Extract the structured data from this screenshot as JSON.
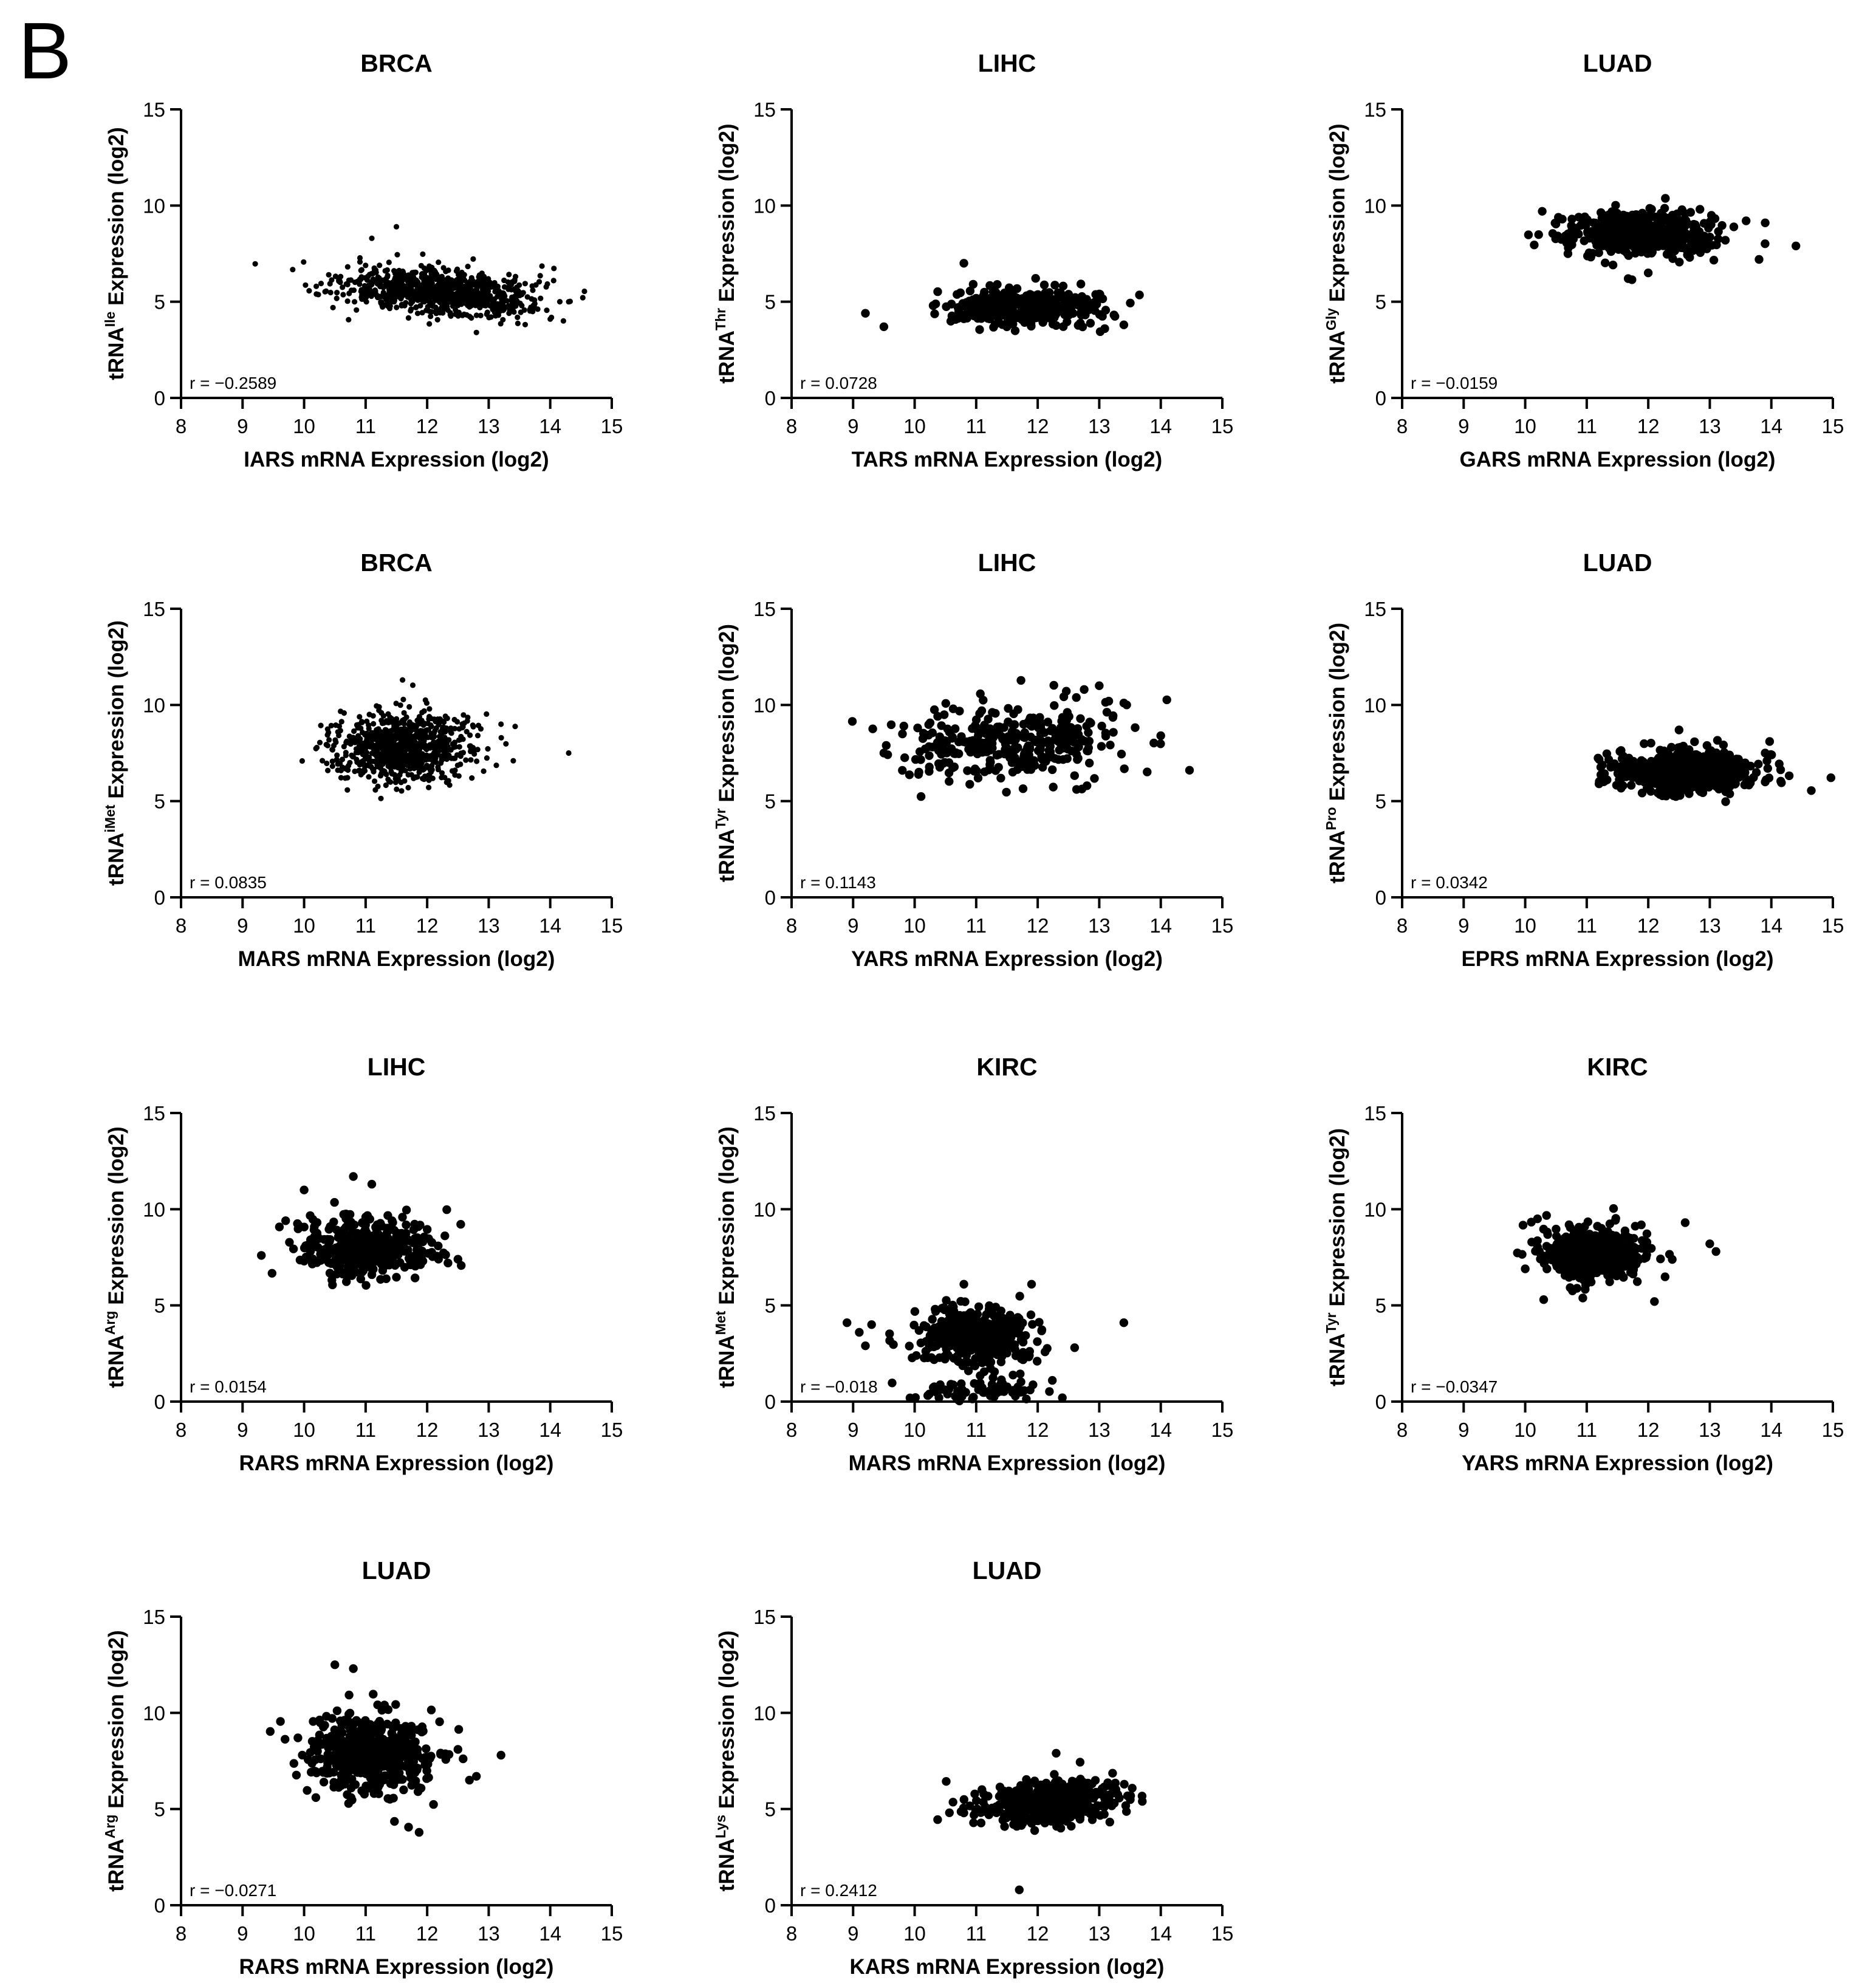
{
  "panel_label": "B",
  "colors": {
    "background": "#ffffff",
    "ink": "#000000"
  },
  "chart_data": [
    {
      "type": "scatter",
      "title": "BRCA",
      "xlabel": "IARS mRNA Expression (log2)",
      "ylabel": {
        "prefix": "tRNA",
        "superscript": "Ile",
        "suffix": " Expression (log2)"
      },
      "annotation": "r = −0.2589",
      "xlim": [
        8,
        15
      ],
      "ylim": [
        0,
        15
      ],
      "xticks": [
        8,
        9,
        10,
        11,
        12,
        13,
        14,
        15
      ],
      "yticks": [
        0,
        5,
        10,
        15
      ],
      "marker_size": "small",
      "clusters": [
        {
          "cx": 12.2,
          "cy": 5.5,
          "sx": 0.75,
          "sy": 0.6,
          "n": 900,
          "rho": -0.26
        }
      ],
      "points": [
        [
          10.2,
          5.4
        ],
        [
          11.5,
          8.9
        ],
        [
          14.3,
          5.0
        ],
        [
          14.0,
          4.1
        ],
        [
          12.8,
          3.4
        ],
        [
          10.4,
          6.4
        ],
        [
          11.1,
          8.3
        ]
      ]
    },
    {
      "type": "scatter",
      "title": "LIHC",
      "xlabel": "TARS mRNA Expression (log2)",
      "ylabel": {
        "prefix": "tRNA",
        "superscript": "Thr",
        "suffix": " Expression (log2)"
      },
      "annotation": "r = 0.0728",
      "xlim": [
        8,
        15
      ],
      "ylim": [
        0,
        15
      ],
      "xticks": [
        8,
        9,
        10,
        11,
        12,
        13,
        14,
        15
      ],
      "yticks": [
        0,
        5,
        10,
        15
      ],
      "marker_size": "large",
      "clusters": [
        {
          "cx": 11.8,
          "cy": 4.8,
          "sx": 0.6,
          "sy": 0.5,
          "n": 360,
          "rho": 0.07
        }
      ],
      "points": [
        [
          9.2,
          4.4
        ],
        [
          9.5,
          3.7
        ],
        [
          10.8,
          7.0
        ],
        [
          13.4,
          3.8
        ],
        [
          10.3,
          4.8
        ],
        [
          13.0,
          5.4
        ]
      ]
    },
    {
      "type": "scatter",
      "title": "LUAD",
      "xlabel": "GARS mRNA Expression (log2)",
      "ylabel": {
        "prefix": "tRNA",
        "superscript": "Gly",
        "suffix": " Expression (log2)"
      },
      "annotation": "r = −0.0159",
      "xlim": [
        8,
        15
      ],
      "ylim": [
        0,
        15
      ],
      "xticks": [
        8,
        9,
        10,
        11,
        12,
        13,
        14,
        15
      ],
      "yticks": [
        0,
        5,
        10,
        15
      ],
      "marker_size": "large",
      "clusters": [
        {
          "cx": 11.9,
          "cy": 8.6,
          "sx": 0.6,
          "sy": 0.6,
          "n": 520,
          "rho": -0.02
        }
      ],
      "points": [
        [
          14.4,
          7.9
        ],
        [
          13.9,
          9.1
        ],
        [
          10.7,
          7.8
        ],
        [
          12.0,
          6.5
        ],
        [
          13.8,
          7.2
        ]
      ]
    },
    {
      "type": "scatter",
      "title": "BRCA",
      "xlabel": "MARS mRNA Expression (log2)",
      "ylabel": {
        "prefix": "tRNA",
        "superscript": "iMet",
        "suffix": " Expression (log2)"
      },
      "annotation": "r = 0.0835",
      "xlim": [
        8,
        15
      ],
      "ylim": [
        0,
        15
      ],
      "xticks": [
        8,
        9,
        10,
        11,
        12,
        13,
        14,
        15
      ],
      "yticks": [
        0,
        5,
        10,
        15
      ],
      "marker_size": "small",
      "clusters": [
        {
          "cx": 11.6,
          "cy": 7.8,
          "sx": 0.55,
          "sy": 0.85,
          "n": 850,
          "rho": 0.08
        }
      ],
      "points": [
        [
          14.3,
          7.5
        ],
        [
          13.4,
          7.1
        ],
        [
          11.6,
          11.3
        ],
        [
          13.2,
          9.0
        ],
        [
          10.6,
          6.6
        ]
      ]
    },
    {
      "type": "scatter",
      "title": "LIHC",
      "xlabel": "YARS mRNA Expression (log2)",
      "ylabel": {
        "prefix": "tRNA",
        "superscript": "Tyr",
        "suffix": " Expression (log2)"
      },
      "annotation": "r = 0.1143",
      "xlim": [
        8,
        15
      ],
      "ylim": [
        0,
        15
      ],
      "xticks": [
        8,
        9,
        10,
        11,
        12,
        13,
        14,
        15
      ],
      "yticks": [
        0,
        5,
        10,
        15
      ],
      "marker_size": "large",
      "clusters": [
        {
          "cx": 11.6,
          "cy": 8.1,
          "sx": 0.85,
          "sy": 1.0,
          "n": 340,
          "rho": 0.11
        }
      ],
      "points": [
        [
          9.5,
          7.5
        ],
        [
          9.8,
          6.6
        ],
        [
          14.0,
          8.4
        ],
        [
          13.0,
          11.0
        ],
        [
          13.4,
          10.1
        ],
        [
          12.8,
          5.8
        ]
      ]
    },
    {
      "type": "scatter",
      "title": "LUAD",
      "xlabel": "EPRS mRNA Expression (log2)",
      "ylabel": {
        "prefix": "tRNA",
        "superscript": "Pro",
        "suffix": " Expression (log2)"
      },
      "annotation": "r = 0.0342",
      "xlim": [
        8,
        15
      ],
      "ylim": [
        0,
        15
      ],
      "xticks": [
        8,
        9,
        10,
        11,
        12,
        13,
        14,
        15
      ],
      "yticks": [
        0,
        5,
        10,
        15
      ],
      "marker_size": "large",
      "clusters": [
        {
          "cx": 12.6,
          "cy": 6.5,
          "sx": 0.6,
          "sy": 0.55,
          "n": 520,
          "rho": 0.03
        }
      ],
      "points": [
        [
          11.2,
          5.9
        ],
        [
          12.5,
          8.7
        ],
        [
          13.9,
          7.5
        ],
        [
          13.9,
          6.0
        ]
      ]
    },
    {
      "type": "scatter",
      "title": "LIHC",
      "xlabel": "RARS mRNA Expression (log2)",
      "ylabel": {
        "prefix": "tRNA",
        "superscript": "Arg",
        "suffix": " Expression (log2)"
      },
      "annotation": "r = 0.0154",
      "xlim": [
        8,
        15
      ],
      "ylim": [
        0,
        15
      ],
      "xticks": [
        8,
        9,
        10,
        11,
        12,
        13,
        14,
        15
      ],
      "yticks": [
        0,
        5,
        10,
        15
      ],
      "marker_size": "large",
      "clusters": [
        {
          "cx": 11.0,
          "cy": 8.0,
          "sx": 0.55,
          "sy": 0.8,
          "n": 370,
          "rho": 0.02
        }
      ],
      "points": [
        [
          9.7,
          9.4
        ],
        [
          10.0,
          11.0
        ],
        [
          10.8,
          11.7
        ],
        [
          11.1,
          11.3
        ],
        [
          12.5,
          7.4
        ],
        [
          10.0,
          7.3
        ]
      ]
    },
    {
      "type": "scatter",
      "title": "KIRC",
      "xlabel": "MARS mRNA Expression (log2)",
      "ylabel": {
        "prefix": "tRNA",
        "superscript": "Met",
        "suffix": " Expression (log2)"
      },
      "annotation": "r = −0.018",
      "xlim": [
        8,
        15
      ],
      "ylim": [
        0,
        15
      ],
      "xticks": [
        8,
        9,
        10,
        11,
        12,
        13,
        14,
        15
      ],
      "yticks": [
        0,
        5,
        10,
        15
      ],
      "marker_size": "large",
      "clusters": [
        {
          "cx": 11.0,
          "cy": 3.4,
          "sx": 0.45,
          "sy": 0.75,
          "n": 420,
          "rho": -0.02
        },
        {
          "cx": 11.0,
          "cy": 0.6,
          "sx": 0.55,
          "sy": 0.35,
          "n": 70,
          "rho": 0
        }
      ],
      "points": [
        [
          8.9,
          4.1
        ],
        [
          9.1,
          3.6
        ],
        [
          9.3,
          4.0
        ],
        [
          9.2,
          2.9
        ],
        [
          13.4,
          4.1
        ],
        [
          12.6,
          2.8
        ],
        [
          12.4,
          0.2
        ],
        [
          11.9,
          6.1
        ],
        [
          10.8,
          6.1
        ]
      ]
    },
    {
      "type": "scatter",
      "title": "KIRC",
      "xlabel": "YARS mRNA Expression (log2)",
      "ylabel": {
        "prefix": "tRNA",
        "superscript": "Tyr",
        "suffix": " Expression (log2)"
      },
      "annotation": "r = −0.0347",
      "xlim": [
        8,
        15
      ],
      "ylim": [
        0,
        15
      ],
      "xticks": [
        8,
        9,
        10,
        11,
        12,
        13,
        14,
        15
      ],
      "yticks": [
        0,
        5,
        10,
        15
      ],
      "marker_size": "large",
      "clusters": [
        {
          "cx": 11.1,
          "cy": 7.7,
          "sx": 0.42,
          "sy": 0.65,
          "n": 480,
          "rho": -0.03
        }
      ],
      "points": [
        [
          13.0,
          8.2
        ],
        [
          13.1,
          7.8
        ],
        [
          10.0,
          6.9
        ],
        [
          10.2,
          9.5
        ],
        [
          10.3,
          5.3
        ],
        [
          12.1,
          5.2
        ],
        [
          12.6,
          9.3
        ]
      ]
    },
    {
      "type": "scatter",
      "title": "LUAD",
      "xlabel": "RARS mRNA Expression (log2)",
      "ylabel": {
        "prefix": "tRNA",
        "superscript": "Arg",
        "suffix": " Expression (log2)"
      },
      "annotation": "r = −0.0271",
      "xlim": [
        8,
        15
      ],
      "ylim": [
        0,
        15
      ],
      "xticks": [
        8,
        9,
        10,
        11,
        12,
        13,
        14,
        15
      ],
      "yticks": [
        0,
        5,
        10,
        15
      ],
      "marker_size": "large",
      "clusters": [
        {
          "cx": 11.1,
          "cy": 7.9,
          "sx": 0.55,
          "sy": 1.1,
          "n": 480,
          "rho": -0.03
        }
      ],
      "points": [
        [
          10.5,
          12.5
        ],
        [
          10.8,
          12.3
        ],
        [
          13.2,
          7.8
        ],
        [
          12.8,
          6.7
        ],
        [
          9.9,
          8.7
        ],
        [
          12.5,
          8.1
        ]
      ]
    },
    {
      "type": "scatter",
      "title": "LUAD",
      "xlabel": "KARS mRNA Expression (log2)",
      "ylabel": {
        "prefix": "tRNA",
        "superscript": "Lys",
        "suffix": " Expression (log2)"
      },
      "annotation": "r = 0.2412",
      "xlim": [
        8,
        15
      ],
      "ylim": [
        0,
        15
      ],
      "xticks": [
        8,
        9,
        10,
        11,
        12,
        13,
        14,
        15
      ],
      "yticks": [
        0,
        5,
        10,
        15
      ],
      "marker_size": "large",
      "clusters": [
        {
          "cx": 12.2,
          "cy": 5.4,
          "sx": 0.55,
          "sy": 0.55,
          "n": 500,
          "rho": 0.24
        }
      ],
      "points": [
        [
          11.7,
          0.8
        ],
        [
          13.7,
          5.4
        ],
        [
          10.8,
          4.8
        ],
        [
          12.3,
          7.9
        ]
      ]
    }
  ]
}
